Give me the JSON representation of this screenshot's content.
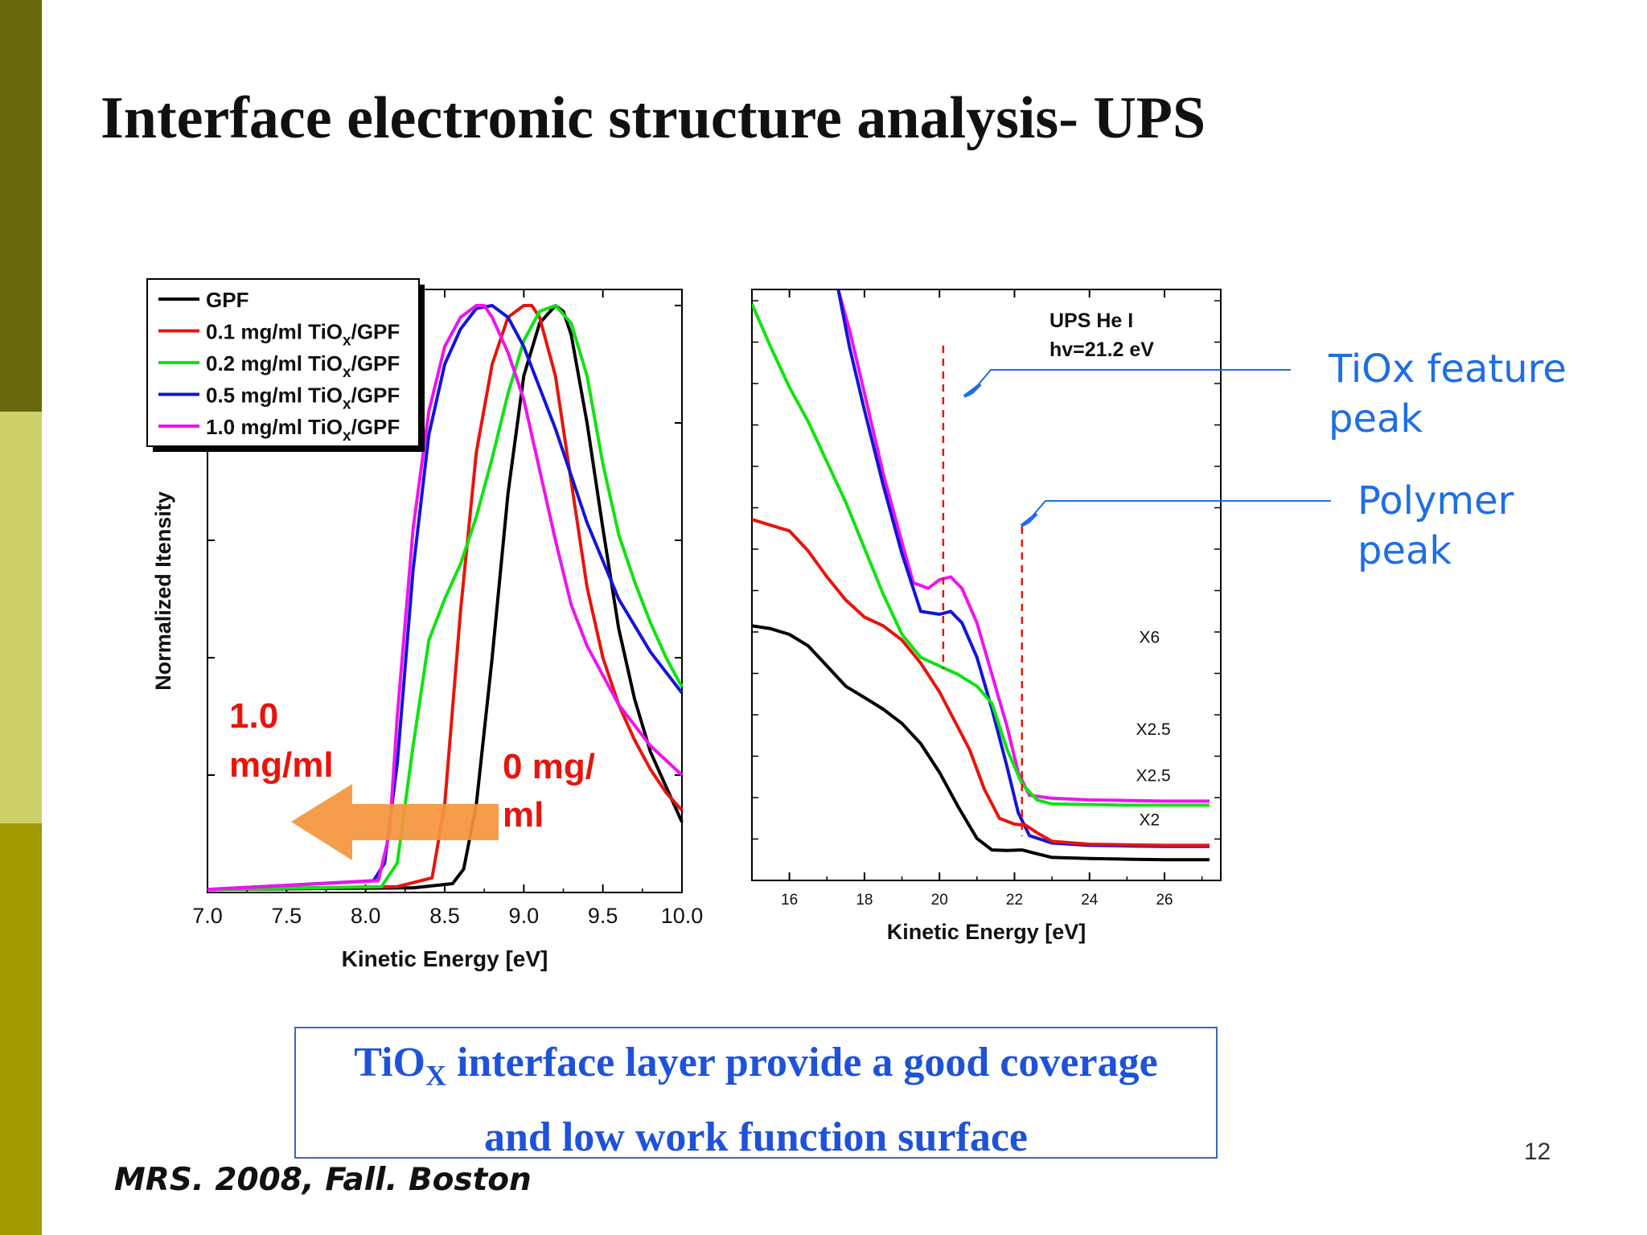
{
  "slide": {
    "title": "Interface electronic structure analysis- UPS",
    "page_number": "12",
    "citation": "MRS. 2008, Fall. Boston",
    "conclusion_line1_a": "TiO",
    "conclusion_line1_sub": "X",
    "conclusion_line1_b": " interface layer provide a good coverage",
    "conclusion_line2": "and low work function surface",
    "annotation_tiox_1": "TiOx feature",
    "annotation_tiox_2": "peak",
    "annotation_polymer_1": "Polymer",
    "annotation_polymer_2": "peak",
    "colors": {
      "sidebar_dark": "#666a0a",
      "sidebar_light": "#cfd16a",
      "sidebar_mid": "#9e9a00",
      "annotation_blue": "#1e6ee6",
      "arrow_orange": "#f5953c"
    }
  },
  "chart_data": [
    {
      "type": "line",
      "xlabel": "Kinetic Energy [eV]",
      "ylabel": "Normalized Itensity",
      "xlim": [
        7.0,
        10.0
      ],
      "ylim": [
        0,
        1.0
      ],
      "x_ticks": [
        "7.0",
        "7.5",
        "8.0",
        "8.5",
        "9.0",
        "9.5",
        "10.0"
      ],
      "legend_position": "top-left",
      "left_label_1": "1.0",
      "left_label_2": "mg/ml",
      "right_label_1": "0 mg/",
      "right_label_2": "ml",
      "series": [
        {
          "name": "GPF",
          "sub": "",
          "suffix": "",
          "color": "#000000",
          "x": [
            7.0,
            8.3,
            8.55,
            8.62,
            8.7,
            8.8,
            8.9,
            9.0,
            9.1,
            9.2,
            9.25,
            9.3,
            9.4,
            9.5,
            9.6,
            9.7,
            9.8,
            9.9,
            10.0
          ],
          "y": [
            0.005,
            0.008,
            0.015,
            0.04,
            0.15,
            0.4,
            0.68,
            0.88,
            0.97,
            1.0,
            0.99,
            0.95,
            0.8,
            0.62,
            0.45,
            0.33,
            0.24,
            0.18,
            0.12
          ]
        },
        {
          "name": "0.1 mg/ml TiO",
          "sub": "x",
          "suffix": "/GPF",
          "color": "#e8140c",
          "x": [
            7.0,
            8.2,
            8.42,
            8.5,
            8.6,
            8.7,
            8.8,
            8.9,
            9.0,
            9.05,
            9.1,
            9.2,
            9.3,
            9.4,
            9.5,
            9.6,
            9.7,
            9.8,
            9.9,
            10.0
          ],
          "y": [
            0.005,
            0.01,
            0.025,
            0.15,
            0.48,
            0.75,
            0.9,
            0.98,
            1.0,
            1.0,
            0.98,
            0.88,
            0.7,
            0.52,
            0.4,
            0.32,
            0.26,
            0.21,
            0.17,
            0.14
          ]
        },
        {
          "name": "0.2 mg/ml TiO",
          "sub": "x",
          "suffix": "/GPF",
          "color": "#12e212",
          "x": [
            7.0,
            8.1,
            8.2,
            8.3,
            8.4,
            8.5,
            8.6,
            8.7,
            8.8,
            8.9,
            9.0,
            9.1,
            9.2,
            9.3,
            9.4,
            9.5,
            9.6,
            9.7,
            9.8,
            9.9,
            10.0
          ],
          "y": [
            0.005,
            0.01,
            0.05,
            0.25,
            0.43,
            0.5,
            0.56,
            0.64,
            0.74,
            0.85,
            0.94,
            0.99,
            1.0,
            0.97,
            0.88,
            0.73,
            0.61,
            0.53,
            0.46,
            0.4,
            0.35
          ]
        },
        {
          "name": "0.5 mg/ml TiO",
          "sub": "x",
          "suffix": "/GPF",
          "color": "#1414d8",
          "x": [
            7.0,
            8.05,
            8.12,
            8.2,
            8.3,
            8.4,
            8.5,
            8.6,
            8.7,
            8.8,
            8.9,
            9.0,
            9.2,
            9.4,
            9.6,
            9.8,
            10.0
          ],
          "y": [
            0.005,
            0.02,
            0.05,
            0.22,
            0.55,
            0.78,
            0.9,
            0.96,
            0.995,
            1.0,
            0.98,
            0.93,
            0.79,
            0.63,
            0.5,
            0.41,
            0.34
          ]
        },
        {
          "name": "1.0 mg/ml TiO",
          "sub": "x",
          "suffix": "/GPF",
          "color": "#ee14ee",
          "x": [
            7.0,
            8.08,
            8.15,
            8.2,
            8.3,
            8.4,
            8.5,
            8.6,
            8.7,
            8.75,
            8.8,
            8.9,
            9.0,
            9.1,
            9.2,
            9.3,
            9.4,
            9.6,
            9.8,
            10.0
          ],
          "y": [
            0.005,
            0.02,
            0.1,
            0.3,
            0.62,
            0.82,
            0.93,
            0.98,
            1.0,
            1.0,
            0.98,
            0.92,
            0.84,
            0.72,
            0.6,
            0.49,
            0.42,
            0.32,
            0.25,
            0.2
          ]
        }
      ]
    },
    {
      "type": "line",
      "xlabel": "Kinetic Energy [eV]",
      "xlim": [
        15,
        27.5
      ],
      "ylim": [
        0,
        1
      ],
      "x_ticks": [
        "16",
        "18",
        "20",
        "22",
        "24",
        "26"
      ],
      "annotation_1": "UPS He I",
      "annotation_2": "hv=21.2 eV",
      "reference_lines_x": [
        20.1,
        22.2
      ],
      "series": [
        {
          "name": "",
          "scale_label": "X6",
          "label_x": 25.6,
          "label_y": 0.385,
          "color": "#ee14ee",
          "x": [
            17.3,
            17.6,
            18.0,
            18.5,
            19.0,
            19.3,
            19.7,
            20.0,
            20.3,
            20.6,
            21.0,
            21.4,
            21.8,
            22.1,
            22.4,
            23.0,
            24.0,
            25.0,
            26.0,
            27.2
          ],
          "y": [
            1.0,
            0.93,
            0.82,
            0.68,
            0.56,
            0.49,
            0.48,
            0.495,
            0.5,
            0.48,
            0.42,
            0.33,
            0.24,
            0.16,
            0.12,
            0.115,
            0.112,
            0.111,
            0.11,
            0.11
          ]
        },
        {
          "name": "",
          "scale_label": "X2.5",
          "label_x": 25.7,
          "label_y": 0.225,
          "color": "#1414d8",
          "x": [
            17.3,
            17.6,
            18.0,
            18.5,
            19.0,
            19.5,
            20.0,
            20.3,
            20.6,
            21.0,
            21.4,
            21.8,
            22.1,
            22.4,
            23.0,
            24.0,
            25.0,
            26.0,
            27.2
          ],
          "y": [
            1.0,
            0.9,
            0.79,
            0.66,
            0.54,
            0.44,
            0.435,
            0.44,
            0.42,
            0.36,
            0.27,
            0.17,
            0.09,
            0.05,
            0.037,
            0.033,
            0.032,
            0.031,
            0.031
          ]
        },
        {
          "name": "",
          "scale_label": "X2.5",
          "label_x": 25.7,
          "label_y": 0.145,
          "color": "#12e212",
          "x": [
            15.0,
            15.5,
            16.0,
            16.5,
            17.0,
            17.5,
            18.0,
            18.5,
            19.0,
            19.5,
            20.0,
            20.5,
            21.0,
            21.4,
            21.8,
            22.2,
            22.6,
            23.0,
            24.0,
            25.0,
            26.0,
            27.2
          ],
          "y": [
            0.975,
            0.9,
            0.83,
            0.77,
            0.7,
            0.63,
            0.55,
            0.47,
            0.4,
            0.36,
            0.345,
            0.33,
            0.31,
            0.28,
            0.2,
            0.14,
            0.112,
            0.105,
            0.104,
            0.103,
            0.103,
            0.103
          ]
        },
        {
          "name": "",
          "scale_label": "X2",
          "label_x": 25.6,
          "label_y": 0.068,
          "color": "#e8140c",
          "x": [
            15.0,
            15.5,
            16.0,
            16.5,
            17.0,
            17.5,
            18.0,
            18.5,
            19.0,
            19.5,
            20.0,
            20.4,
            20.8,
            21.2,
            21.6,
            22.0,
            22.3,
            22.6,
            23.0,
            24.0,
            25.0,
            26.0,
            27.2
          ],
          "y": [
            0.6,
            0.59,
            0.58,
            0.545,
            0.5,
            0.46,
            0.43,
            0.415,
            0.39,
            0.35,
            0.3,
            0.25,
            0.2,
            0.13,
            0.08,
            0.07,
            0.068,
            0.055,
            0.04,
            0.035,
            0.034,
            0.033,
            0.033
          ]
        },
        {
          "name": "",
          "scale_label": "",
          "label_x": 0,
          "label_y": 0,
          "color": "#000000",
          "x": [
            15.0,
            15.5,
            16.0,
            16.5,
            17.0,
            17.5,
            18.0,
            18.5,
            19.0,
            19.5,
            20.0,
            20.5,
            21.0,
            21.4,
            21.8,
            22.2,
            22.5,
            23.0,
            24.0,
            25.0,
            26.0,
            27.2
          ],
          "y": [
            0.415,
            0.41,
            0.4,
            0.38,
            0.345,
            0.31,
            0.29,
            0.27,
            0.245,
            0.21,
            0.16,
            0.1,
            0.045,
            0.025,
            0.024,
            0.025,
            0.02,
            0.012,
            0.01,
            0.009,
            0.008,
            0.008
          ]
        }
      ]
    }
  ]
}
